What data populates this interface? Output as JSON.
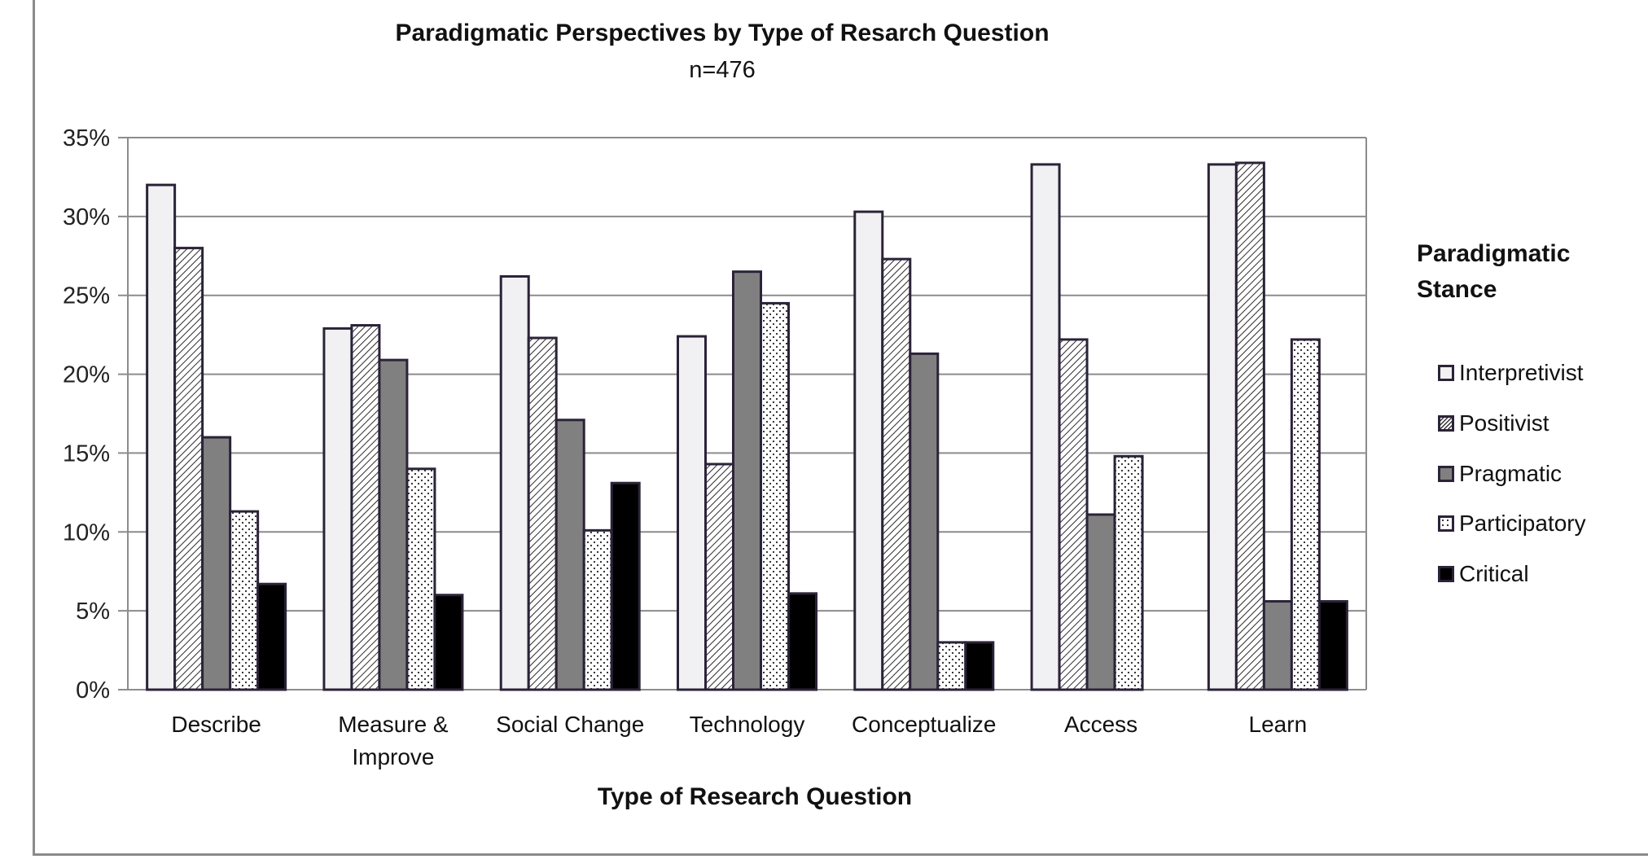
{
  "chart": {
    "title": "Paradigmatic Perspectives by Type of Resarch Question",
    "subtitle": "n=476",
    "xaxis_title": "Type of Research Question",
    "legend_title_line1": "Paradigmatic",
    "legend_title_line2": "Stance",
    "y_ticks": [
      "0%",
      "5%",
      "10%",
      "15%",
      "20%",
      "25%",
      "30%",
      "35%"
    ],
    "categories": [
      {
        "line1": "Describe",
        "line2": ""
      },
      {
        "line1": "Measure &",
        "line2": "Improve"
      },
      {
        "line1": "Social Change",
        "line2": ""
      },
      {
        "line1": "Technology",
        "line2": ""
      },
      {
        "line1": "Conceptualize",
        "line2": ""
      },
      {
        "line1": "Access",
        "line2": ""
      },
      {
        "line1": "Learn",
        "line2": ""
      }
    ],
    "legend": [
      {
        "label": "Interpretivist",
        "pattern": "solid-light"
      },
      {
        "label": "Positivist",
        "pattern": "diagonal-hatch"
      },
      {
        "label": "Pragmatic",
        "pattern": "solid-gray"
      },
      {
        "label": "Participatory",
        "pattern": "dots"
      },
      {
        "label": "Critical",
        "pattern": "solid-black"
      }
    ]
  },
  "chart_data": {
    "type": "bar",
    "title": "Paradigmatic Perspectives by Type of Resarch Question",
    "subtitle": "n=476",
    "xlabel": "Type of Research Question",
    "ylabel": "",
    "ylim": [
      0,
      35
    ],
    "y_unit": "%",
    "y_ticks": [
      0,
      5,
      10,
      15,
      20,
      25,
      30,
      35
    ],
    "grid": true,
    "legend_title": "Paradigmatic Stance",
    "legend_position": "right",
    "categories": [
      "Describe",
      "Measure & Improve",
      "Social Change",
      "Technology",
      "Conceptualize",
      "Access",
      "Learn"
    ],
    "series": [
      {
        "name": "Interpretivist",
        "values": [
          32.0,
          22.9,
          26.2,
          22.4,
          30.3,
          33.3,
          33.3
        ]
      },
      {
        "name": "Positivist",
        "values": [
          28.0,
          23.1,
          22.3,
          14.3,
          27.3,
          22.2,
          33.4
        ]
      },
      {
        "name": "Pragmatic",
        "values": [
          16.0,
          20.9,
          17.1,
          26.5,
          21.3,
          11.1,
          5.6
        ]
      },
      {
        "name": "Participatory",
        "values": [
          11.3,
          14.0,
          10.1,
          24.5,
          3.0,
          14.8,
          22.2
        ]
      },
      {
        "name": "Critical",
        "values": [
          6.7,
          6.0,
          13.1,
          6.1,
          3.0,
          0.0,
          5.6
        ]
      }
    ]
  },
  "colors": {
    "bar_outline": "#2b2338",
    "interpretivist_fill": "#f1f1f3",
    "pragmatic_fill": "#808080",
    "critical_fill": "#000000",
    "gridline": "#8c8c8c"
  }
}
